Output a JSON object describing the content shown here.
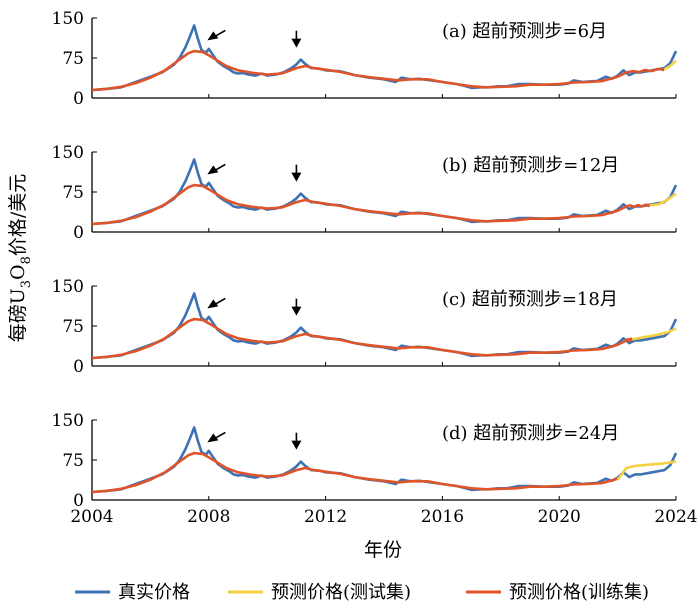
{
  "chart_data": {
    "type": "line",
    "ylabel": "每磅U3O8价格/美元",
    "ylabel_parts": {
      "main": "每磅U",
      "sub1": "3",
      "mid": "O",
      "sub2": "8",
      "tail": "价格/美元"
    },
    "xlabel": "年份",
    "xlim": [
      2004,
      2024
    ],
    "ylim": [
      0,
      150
    ],
    "x_ticks": [
      "2004",
      "2008",
      "2012",
      "2016",
      "2020",
      "2024"
    ],
    "y_ticks": [
      "0",
      "75",
      "150"
    ],
    "grid": false,
    "legend_position": "bottom",
    "legend": [
      "真实价格",
      "预测价格(测试集)",
      "预测价格(训练集)"
    ],
    "colors": {
      "true": "#3d72b4",
      "test": "#f5d142",
      "train": "#e0542a"
    },
    "true_price": {
      "name": "真实价格",
      "x": [
        2004.0,
        2004.5,
        2005.0,
        2005.5,
        2006.0,
        2006.4,
        2006.8,
        2007.0,
        2007.2,
        2007.35,
        2007.5,
        2007.62,
        2007.75,
        2007.9,
        2008.0,
        2008.15,
        2008.3,
        2008.5,
        2008.7,
        2008.85,
        2009.0,
        2009.15,
        2009.35,
        2009.6,
        2009.8,
        2010.0,
        2010.3,
        2010.55,
        2010.8,
        2011.0,
        2011.15,
        2011.3,
        2011.5,
        2011.8,
        2012.0,
        2012.5,
        2013.0,
        2013.5,
        2014.0,
        2014.4,
        2014.6,
        2014.9,
        2015.2,
        2015.5,
        2016.0,
        2016.5,
        2016.8,
        2017.0,
        2017.3,
        2017.6,
        2017.9,
        2018.2,
        2018.6,
        2019.0,
        2019.5,
        2020.0,
        2020.3,
        2020.5,
        2020.8,
        2021.0,
        2021.3,
        2021.6,
        2021.8,
        2022.0,
        2022.2,
        2022.4,
        2022.6,
        2022.8,
        2023.0,
        2023.3,
        2023.6,
        2023.8,
        2024.0
      ],
      "y": [
        15,
        17,
        20,
        30,
        40,
        48,
        62,
        75,
        95,
        115,
        136,
        112,
        90,
        85,
        92,
        80,
        68,
        60,
        54,
        48,
        46,
        47,
        44,
        42,
        46,
        42,
        44,
        48,
        55,
        63,
        72,
        64,
        56,
        55,
        52,
        50,
        43,
        38,
        35,
        30,
        38,
        35,
        36,
        34,
        30,
        26,
        22,
        19,
        20,
        20,
        22,
        22,
        26,
        26,
        25,
        25,
        27,
        33,
        30,
        31,
        32,
        40,
        36,
        42,
        52,
        43,
        48,
        48,
        50,
        53,
        56,
        65,
        88
      ]
    },
    "train_pred": {
      "name": "预测价格(训练集)",
      "x": [
        2004.0,
        2004.5,
        2005.0,
        2005.5,
        2006.0,
        2006.5,
        2007.0,
        2007.3,
        2007.5,
        2007.8,
        2008.0,
        2008.3,
        2008.6,
        2009.0,
        2009.5,
        2010.0,
        2010.5,
        2011.0,
        2011.3,
        2011.6,
        2012.0,
        2012.5,
        2013.0,
        2013.5,
        2014.0,
        2014.5,
        2014.9,
        2015.5,
        2016.0,
        2016.5,
        2017.0,
        2017.5,
        2018.0,
        2018.5,
        2019.0,
        2019.5,
        2020.0,
        2020.5,
        2021.0,
        2021.5,
        2022.0,
        2022.3
      ],
      "y": [
        15,
        17,
        21,
        28,
        38,
        52,
        72,
        84,
        88,
        86,
        80,
        70,
        60,
        52,
        47,
        44,
        46,
        56,
        60,
        56,
        53,
        49,
        43,
        39,
        36,
        33,
        35,
        35,
        30,
        26,
        22,
        20,
        21,
        22,
        25,
        25,
        26,
        29,
        30,
        32,
        40,
        48
      ]
    },
    "panels": [
      {
        "label": "(a) 超前预测步=6月",
        "train_end": 2023.6,
        "test_x": [
          2023.6,
          2023.8,
          2024.0
        ],
        "test_y": [
          54,
          60,
          70
        ]
      },
      {
        "label": "(b) 超前预测步=12月",
        "train_end": 2023.1,
        "test_x": [
          2023.1,
          2023.4,
          2023.7,
          2024.0
        ],
        "test_y": [
          50,
          52,
          60,
          72
        ]
      },
      {
        "label": "(c) 超前预测步=18月",
        "train_end": 2022.5,
        "test_x": [
          2022.5,
          2022.9,
          2023.3,
          2023.7,
          2024.0
        ],
        "test_y": [
          50,
          54,
          58,
          63,
          70
        ]
      },
      {
        "label": "(d) 超前预测步=24月",
        "train_end": 2022.0,
        "test_x": [
          2022.0,
          2022.3,
          2022.6,
          2023.0,
          2023.5,
          2024.0
        ],
        "test_y": [
          38,
          60,
          64,
          66,
          68,
          72
        ]
      }
    ]
  }
}
